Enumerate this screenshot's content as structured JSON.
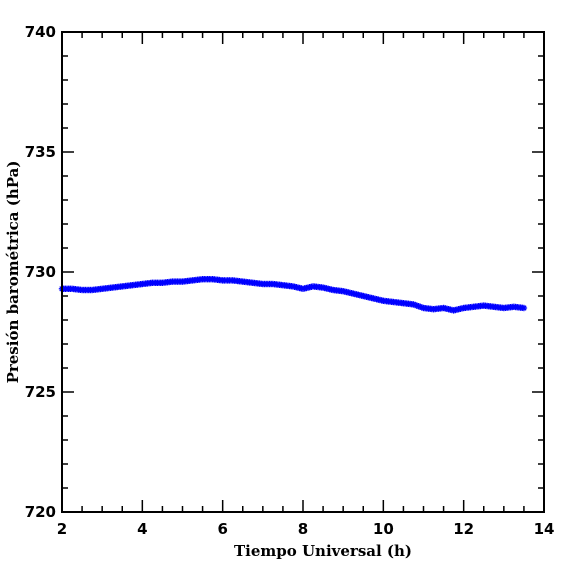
{
  "chart_data": {
    "type": "scatter",
    "xlabel": "Tiempo Universal (h)",
    "ylabel": "Presión barométrica (hPa)",
    "xlim": [
      2,
      14
    ],
    "ylim": [
      720,
      740
    ],
    "x_ticks": [
      2,
      4,
      6,
      8,
      10,
      12,
      14
    ],
    "y_ticks": [
      720,
      725,
      730,
      735,
      740
    ],
    "x_minor_step": 0.5,
    "y_minor_step": 1,
    "grid": false,
    "marker": "asterisk",
    "color": "#0000ff",
    "series": [
      {
        "x": [
          2.0,
          2.25,
          2.5,
          2.75,
          3.0,
          3.25,
          3.5,
          3.75,
          4.0,
          4.25,
          4.5,
          4.75,
          5.0,
          5.25,
          5.5,
          5.75,
          6.0,
          6.25,
          6.5,
          6.75,
          7.0,
          7.25,
          7.5,
          7.75,
          8.0,
          8.25,
          8.5,
          8.75,
          9.0,
          9.25,
          9.5,
          9.75,
          10.0,
          10.25,
          10.5,
          10.75,
          11.0,
          11.25,
          11.5,
          11.75,
          12.0,
          12.25,
          12.5,
          12.75,
          13.0,
          13.25,
          13.5
        ],
        "y": [
          729.3,
          729.3,
          729.25,
          729.25,
          729.3,
          729.35,
          729.4,
          729.45,
          729.5,
          729.55,
          729.55,
          729.6,
          729.6,
          729.65,
          729.7,
          729.7,
          729.65,
          729.65,
          729.6,
          729.55,
          729.5,
          729.5,
          729.45,
          729.4,
          729.3,
          729.4,
          729.35,
          729.25,
          729.2,
          729.1,
          729.0,
          728.9,
          728.8,
          728.75,
          728.7,
          728.65,
          728.5,
          728.45,
          728.5,
          728.4,
          728.5,
          728.55,
          728.6,
          728.55,
          728.5,
          728.55,
          728.5
        ]
      }
    ]
  }
}
